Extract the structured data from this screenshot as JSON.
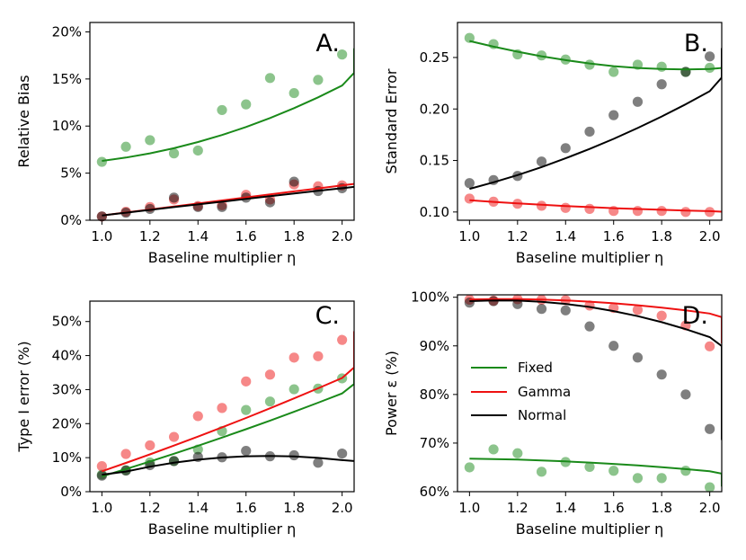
{
  "colors": {
    "Fixed": "#1a8a1a",
    "Gamma": "#ee1111",
    "Normal": "#000000"
  },
  "legend": [
    "Fixed",
    "Gamma",
    "Normal"
  ],
  "chart_data": [
    {
      "id": "A",
      "type": "scatter",
      "letter": "A.",
      "xlabel": "Baseline multiplier η",
      "ylabel": "Relative Bias",
      "xlim": [
        0.95,
        2.05
      ],
      "ylim": [
        0,
        0.21
      ],
      "xticks": [
        1.0,
        1.2,
        1.4,
        1.6,
        1.8,
        2.0
      ],
      "xtick_labels": [
        "1.0",
        "1.2",
        "1.4",
        "1.6",
        "1.8",
        "2.0"
      ],
      "yticks": [
        0,
        0.05,
        0.1,
        0.15,
        0.2
      ],
      "ytick_labels": [
        "0%",
        "5%",
        "10%",
        "15%",
        "20%"
      ],
      "x": [
        1.0,
        1.1,
        1.2,
        1.3,
        1.4,
        1.5,
        1.6,
        1.7,
        1.8,
        1.9,
        2.0
      ],
      "series": [
        {
          "name": "Fixed",
          "points": [
            0.062,
            0.078,
            0.085,
            0.071,
            0.074,
            0.117,
            0.123,
            0.151,
            0.135,
            0.149,
            0.176
          ],
          "fit": [
            0.063,
            0.0665,
            0.071,
            0.0765,
            0.083,
            0.0905,
            0.099,
            0.1085,
            0.119,
            0.1305,
            0.143,
            0.1565,
            0.171,
            0.1825
          ]
        },
        {
          "name": "Gamma",
          "points": [
            0.004,
            0.009,
            0.014,
            0.022,
            0.015,
            0.016,
            0.027,
            0.022,
            0.038,
            0.036,
            0.037
          ],
          "fit": [
            0.005,
            0.0082,
            0.0114,
            0.0146,
            0.0178,
            0.021,
            0.0242,
            0.0274,
            0.0306,
            0.0338,
            0.037,
            0.0386
          ]
        },
        {
          "name": "Normal",
          "points": [
            0.004,
            0.008,
            0.012,
            0.024,
            0.014,
            0.014,
            0.024,
            0.019,
            0.041,
            0.031,
            0.034
          ],
          "fit": [
            0.005,
            0.008,
            0.011,
            0.0139,
            0.0168,
            0.0197,
            0.0226,
            0.0255,
            0.0284,
            0.0312,
            0.034,
            0.0354
          ]
        }
      ]
    },
    {
      "id": "B",
      "type": "scatter",
      "letter": "B.",
      "xlabel": "Baseline multiplier η",
      "ylabel": "Standard Error",
      "xlim": [
        0.95,
        2.05
      ],
      "ylim": [
        0.092,
        0.284
      ],
      "xticks": [
        1.0,
        1.2,
        1.4,
        1.6,
        1.8,
        2.0
      ],
      "xtick_labels": [
        "1.0",
        "1.2",
        "1.4",
        "1.6",
        "1.8",
        "2.0"
      ],
      "yticks": [
        0.1,
        0.15,
        0.2,
        0.25
      ],
      "ytick_labels": [
        "0.10",
        "0.15",
        "0.20",
        "0.25"
      ],
      "x": [
        1.0,
        1.1,
        1.2,
        1.3,
        1.4,
        1.5,
        1.6,
        1.7,
        1.8,
        1.9,
        2.0
      ],
      "series": [
        {
          "name": "Fixed",
          "points": [
            0.269,
            0.263,
            0.253,
            0.252,
            0.248,
            0.243,
            0.236,
            0.243,
            0.241,
            0.236,
            0.24
          ],
          "fit": [
            0.266,
            0.2605,
            0.2556,
            0.2512,
            0.2474,
            0.2442,
            0.2416,
            0.2398,
            0.2388,
            0.2384,
            0.2388,
            0.2398
          ]
        },
        {
          "name": "Gamma",
          "points": [
            0.113,
            0.11,
            0.108,
            0.106,
            0.104,
            0.103,
            0.101,
            0.101,
            0.101,
            0.1,
            0.1
          ],
          "fit": [
            0.1115,
            0.1098,
            0.1083,
            0.107,
            0.1058,
            0.1047,
            0.1037,
            0.1029,
            0.1021,
            0.1014,
            0.1008,
            0.1003,
            0.0998,
            0.0995
          ]
        },
        {
          "name": "Normal",
          "points": [
            0.128,
            0.131,
            0.135,
            0.149,
            0.162,
            0.178,
            0.194,
            0.207,
            0.224,
            0.236,
            0.251
          ],
          "fit": [
            0.1225,
            0.1288,
            0.1358,
            0.1436,
            0.1521,
            0.1612,
            0.171,
            0.1815,
            0.1927,
            0.2046,
            0.2172,
            0.2305,
            0.2445,
            0.2591
          ]
        }
      ]
    },
    {
      "id": "C",
      "type": "scatter",
      "letter": "C.",
      "xlabel": "Baseline multiplier η",
      "ylabel": "Type I error (%)",
      "xlim": [
        0.95,
        2.05
      ],
      "ylim": [
        0,
        0.56
      ],
      "xticks": [
        1.0,
        1.2,
        1.4,
        1.6,
        1.8,
        2.0
      ],
      "xtick_labels": [
        "1.0",
        "1.2",
        "1.4",
        "1.6",
        "1.8",
        "2.0"
      ],
      "yticks": [
        0,
        0.1,
        0.2,
        0.3,
        0.4,
        0.5
      ],
      "ytick_labels": [
        "0%",
        "10%",
        "20%",
        "30%",
        "40%",
        "50%"
      ],
      "x": [
        1.0,
        1.1,
        1.2,
        1.3,
        1.4,
        1.5,
        1.6,
        1.7,
        1.8,
        1.9,
        2.0
      ],
      "series": [
        {
          "name": "Fixed",
          "points": [
            0.05,
            0.063,
            0.086,
            0.09,
            0.124,
            0.178,
            0.24,
            0.265,
            0.301,
            0.303,
            0.333
          ],
          "fit": [
            0.045,
            0.0665,
            0.0887,
            0.1115,
            0.1349,
            0.159,
            0.1837,
            0.209,
            0.2349,
            0.2615,
            0.2886,
            0.3164,
            0.3448,
            0.3739
          ]
        },
        {
          "name": "Gamma",
          "points": [
            0.075,
            0.111,
            0.136,
            0.161,
            0.222,
            0.246,
            0.324,
            0.344,
            0.394,
            0.398,
            0.446
          ],
          "fit": [
            0.06,
            0.0845,
            0.1097,
            0.1355,
            0.1619,
            0.189,
            0.2167,
            0.2451,
            0.2741,
            0.3038,
            0.3341,
            0.3651,
            0.3967,
            0.429,
            0.462,
            0.4716
          ]
        },
        {
          "name": "Normal",
          "points": [
            0.047,
            0.062,
            0.078,
            0.09,
            0.102,
            0.101,
            0.12,
            0.104,
            0.107,
            0.085,
            0.112
          ],
          "fit": [
            0.05,
            0.0593,
            0.0735,
            0.0851,
            0.094,
            0.1004,
            0.1041,
            0.1051,
            0.1036,
            0.0994,
            0.0926,
            0.09
          ]
        }
      ]
    },
    {
      "id": "D",
      "type": "scatter",
      "letter": "D.",
      "xlabel": "Baseline multiplier η",
      "ylabel": "Power ε (%)",
      "xlim": [
        0.95,
        2.05
      ],
      "ylim": [
        0.6,
        1.005
      ],
      "xticks": [
        1.0,
        1.2,
        1.4,
        1.6,
        1.8,
        2.0
      ],
      "xtick_labels": [
        "1.0",
        "1.2",
        "1.4",
        "1.6",
        "1.8",
        "2.0"
      ],
      "yticks": [
        0.6,
        0.7,
        0.8,
        0.9,
        1.0
      ],
      "ytick_labels": [
        "60%",
        "70%",
        "80%",
        "90%",
        "100%"
      ],
      "x": [
        1.0,
        1.1,
        1.2,
        1.3,
        1.4,
        1.5,
        1.6,
        1.7,
        1.8,
        1.9,
        2.0
      ],
      "series": [
        {
          "name": "Fixed",
          "points": [
            0.65,
            0.687,
            0.679,
            0.641,
            0.661,
            0.651,
            0.643,
            0.628,
            0.628,
            0.643,
            0.609
          ],
          "fit": [
            0.668,
            0.6672,
            0.666,
            0.6644,
            0.6624,
            0.66,
            0.6572,
            0.654,
            0.6504,
            0.6464,
            0.642,
            0.6372,
            0.632,
            0.6264,
            0.6204,
            0.614,
            0.6108
          ]
        },
        {
          "name": "Gamma",
          "points": [
            0.995,
            0.993,
            0.996,
            0.995,
            0.994,
            0.983,
            0.978,
            0.974,
            0.962,
            0.942,
            0.899
          ],
          "fit": [
            0.9955,
            0.9962,
            0.9961,
            0.9952,
            0.9935,
            0.991,
            0.9877,
            0.9836,
            0.9787,
            0.973,
            0.9665,
            0.9592,
            0.9511,
            0.9422,
            0.9325,
            0.922,
            0.9107,
            0.9048
          ]
        },
        {
          "name": "Normal",
          "points": [
            0.989,
            0.992,
            0.986,
            0.976,
            0.973,
            0.94,
            0.9,
            0.876,
            0.841,
            0.8,
            0.729
          ],
          "fit": [
            0.992,
            0.9936,
            0.9932,
            0.9908,
            0.9864,
            0.98,
            0.9716,
            0.9612,
            0.9488,
            0.9344,
            0.918,
            0.8996,
            0.8792,
            0.8568,
            0.8324,
            0.806,
            0.7776,
            0.7472,
            0.7148,
            0.7063
          ]
        }
      ]
    }
  ]
}
